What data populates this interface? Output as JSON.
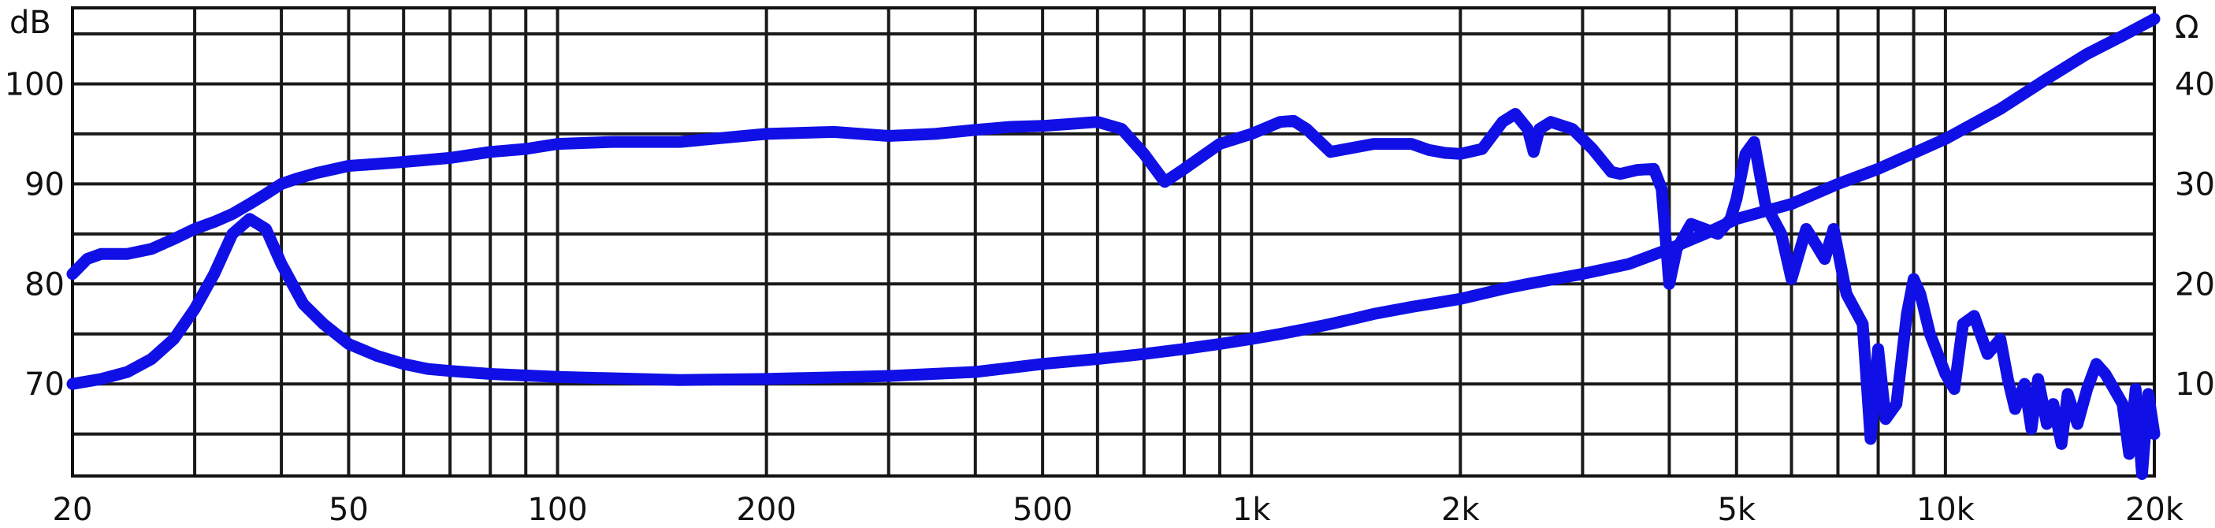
{
  "chart_data": {
    "type": "line",
    "title": "",
    "x_scale": "log",
    "xlim": [
      20,
      20000
    ],
    "x_ticks": [
      {
        "value": 20,
        "label": "20"
      },
      {
        "value": 50,
        "label": "50"
      },
      {
        "value": 100,
        "label": "100"
      },
      {
        "value": 200,
        "label": "200"
      },
      {
        "value": 500,
        "label": "500"
      },
      {
        "value": 1000,
        "label": "1k"
      },
      {
        "value": 2000,
        "label": "2k"
      },
      {
        "value": 5000,
        "label": "5k"
      },
      {
        "value": 10000,
        "label": "10k"
      },
      {
        "value": 20000,
        "label": "20k"
      }
    ],
    "x_minor_grid": [
      30,
      40,
      60,
      70,
      80,
      90,
      300,
      400,
      600,
      700,
      800,
      900,
      3000,
      4000,
      6000,
      7000,
      8000,
      9000
    ],
    "y_left": {
      "unit_label": "dB",
      "lim": [
        60.8,
        107.6
      ],
      "ticks": [
        70,
        80,
        90,
        100
      ],
      "tick_labels": [
        "70",
        "80",
        "90",
        "100"
      ],
      "grid": [
        65,
        70,
        75,
        80,
        85,
        90,
        95,
        100,
        105
      ]
    },
    "y_right": {
      "unit_label": "Ω",
      "lim": [
        0.8,
        47.6
      ],
      "ticks": [
        10,
        20,
        30,
        40
      ],
      "tick_labels": [
        "10",
        "20",
        "30",
        "40"
      ]
    },
    "grid": true,
    "legend": "none",
    "series_color": "#1010e6",
    "series": [
      {
        "axis": "left",
        "points": [
          [
            20,
            81
          ],
          [
            21,
            82.5
          ],
          [
            22,
            83
          ],
          [
            24,
            83
          ],
          [
            26,
            83.5
          ],
          [
            28,
            84.5
          ],
          [
            30,
            85.5
          ],
          [
            32,
            86.2
          ],
          [
            34,
            87
          ],
          [
            36,
            88
          ],
          [
            38,
            89
          ],
          [
            40,
            90
          ],
          [
            42,
            90.5
          ],
          [
            45,
            91.1
          ],
          [
            50,
            91.8
          ],
          [
            55,
            92
          ],
          [
            60,
            92.2
          ],
          [
            70,
            92.6
          ],
          [
            80,
            93.2
          ],
          [
            90,
            93.5
          ],
          [
            100,
            94
          ],
          [
            120,
            94.2
          ],
          [
            150,
            94.2
          ],
          [
            200,
            95
          ],
          [
            250,
            95.2
          ],
          [
            300,
            94.8
          ],
          [
            350,
            95
          ],
          [
            400,
            95.4
          ],
          [
            450,
            95.7
          ],
          [
            500,
            95.8
          ],
          [
            550,
            96
          ],
          [
            600,
            96.2
          ],
          [
            650,
            95.5
          ],
          [
            700,
            93
          ],
          [
            750,
            90.2
          ],
          [
            800,
            91.5
          ],
          [
            900,
            94
          ],
          [
            1000,
            95
          ],
          [
            1100,
            96.2
          ],
          [
            1150,
            96.3
          ],
          [
            1200,
            95.5
          ],
          [
            1300,
            93.2
          ],
          [
            1500,
            94
          ],
          [
            1700,
            94
          ],
          [
            1800,
            93.4
          ],
          [
            1900,
            93.1
          ],
          [
            2000,
            93
          ],
          [
            2150,
            93.5
          ],
          [
            2300,
            96.2
          ],
          [
            2400,
            97
          ],
          [
            2500,
            95.5
          ],
          [
            2550,
            93.2
          ],
          [
            2600,
            95.5
          ],
          [
            2700,
            96.2
          ],
          [
            2900,
            95.5
          ],
          [
            3100,
            93.5
          ],
          [
            3300,
            91.2
          ],
          [
            3400,
            91
          ],
          [
            3600,
            91.4
          ],
          [
            3800,
            91.5
          ],
          [
            3900,
            89.5
          ],
          [
            4000,
            80
          ],
          [
            4100,
            83.5
          ],
          [
            4300,
            86
          ],
          [
            4500,
            85.5
          ],
          [
            4700,
            85
          ],
          [
            4900,
            86.5
          ],
          [
            5000,
            88.5
          ],
          [
            5150,
            93
          ],
          [
            5300,
            94.2
          ],
          [
            5500,
            88
          ],
          [
            5800,
            85
          ],
          [
            6000,
            80.5
          ],
          [
            6300,
            85.5
          ],
          [
            6500,
            84
          ],
          [
            6700,
            82.5
          ],
          [
            6900,
            85.5
          ],
          [
            7200,
            79
          ],
          [
            7600,
            76
          ],
          [
            7800,
            64.5
          ],
          [
            8000,
            73.5
          ],
          [
            8200,
            66.5
          ],
          [
            8500,
            68
          ],
          [
            8800,
            77
          ],
          [
            9000,
            80.5
          ],
          [
            9200,
            79
          ],
          [
            9500,
            75
          ],
          [
            10000,
            71
          ],
          [
            10300,
            69.5
          ],
          [
            10600,
            76
          ],
          [
            11000,
            76.8
          ],
          [
            11500,
            73
          ],
          [
            12000,
            74.5
          ],
          [
            12300,
            70.5
          ],
          [
            12600,
            67.5
          ],
          [
            13000,
            70
          ],
          [
            13300,
            65.5
          ],
          [
            13600,
            70.5
          ],
          [
            14000,
            66
          ],
          [
            14300,
            68
          ],
          [
            14700,
            64
          ],
          [
            15000,
            69
          ],
          [
            15500,
            66
          ],
          [
            16000,
            69.5
          ],
          [
            16500,
            72
          ],
          [
            17000,
            71
          ],
          [
            17500,
            69.5
          ],
          [
            18000,
            68
          ],
          [
            18400,
            63
          ],
          [
            18800,
            69.5
          ],
          [
            19200,
            61
          ],
          [
            19600,
            69
          ],
          [
            20000,
            65
          ]
        ]
      },
      {
        "axis": "right",
        "points": [
          [
            20,
            10
          ],
          [
            22,
            10.5
          ],
          [
            24,
            11.2
          ],
          [
            26,
            12.5
          ],
          [
            28,
            14.5
          ],
          [
            30,
            17.5
          ],
          [
            32,
            21
          ],
          [
            34,
            25
          ],
          [
            36,
            26.5
          ],
          [
            38,
            25.5
          ],
          [
            40,
            22
          ],
          [
            43,
            18
          ],
          [
            46,
            16
          ],
          [
            50,
            14
          ],
          [
            55,
            12.8
          ],
          [
            60,
            12
          ],
          [
            65,
            11.5
          ],
          [
            70,
            11.3
          ],
          [
            80,
            11
          ],
          [
            100,
            10.7
          ],
          [
            150,
            10.4
          ],
          [
            200,
            10.5
          ],
          [
            300,
            10.8
          ],
          [
            400,
            11.2
          ],
          [
            500,
            12
          ],
          [
            600,
            12.5
          ],
          [
            700,
            13
          ],
          [
            800,
            13.5
          ],
          [
            900,
            14
          ],
          [
            1000,
            14.5
          ],
          [
            1100,
            15
          ],
          [
            1200,
            15.5
          ],
          [
            1300,
            16
          ],
          [
            1400,
            16.5
          ],
          [
            1500,
            17
          ],
          [
            1700,
            17.7
          ],
          [
            2000,
            18.5
          ],
          [
            2300,
            19.5
          ],
          [
            2500,
            20
          ],
          [
            3000,
            21
          ],
          [
            3500,
            22
          ],
          [
            4000,
            23.5
          ],
          [
            4500,
            25
          ],
          [
            5000,
            26.5
          ],
          [
            6000,
            28
          ],
          [
            7000,
            30
          ],
          [
            8000,
            31.5
          ],
          [
            10000,
            34.5
          ],
          [
            12000,
            37.5
          ],
          [
            14000,
            40.5
          ],
          [
            16000,
            43
          ],
          [
            18000,
            44.8
          ],
          [
            20000,
            46.5
          ]
        ]
      }
    ]
  }
}
